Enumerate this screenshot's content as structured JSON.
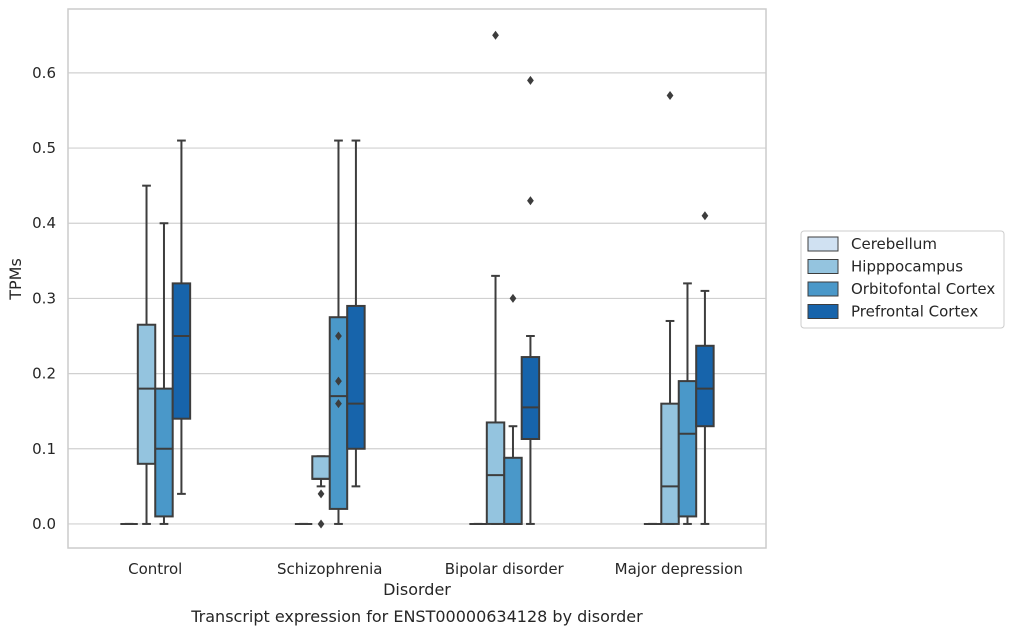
{
  "chart_data": {
    "type": "boxplot",
    "caption": "Transcript expression for ENST00000634128 by disorder",
    "xlabel": "Disorder",
    "ylabel": "TPMs",
    "ylim": [
      -0.032,
      0.685
    ],
    "yticks": [
      0.0,
      0.1,
      0.2,
      0.3,
      0.4,
      0.5,
      0.6
    ],
    "ytick_labels": [
      "0.0",
      "0.1",
      "0.2",
      "0.3",
      "0.4",
      "0.5",
      "0.6"
    ],
    "grid": "horizontal",
    "legend_position": "right",
    "categories": [
      "Control",
      "Schizophrenia",
      "Bipolar disorder",
      "Major depression"
    ],
    "series": [
      {
        "name": "Cerebellum",
        "color": "#d0e1f2",
        "boxes": [
          {
            "min": 0,
            "q1": 0,
            "median": 0,
            "q3": 0,
            "max": 0,
            "outliers": []
          },
          {
            "min": 0,
            "q1": 0,
            "median": 0,
            "q3": 0,
            "max": 0,
            "outliers": []
          },
          {
            "min": 0,
            "q1": 0,
            "median": 0,
            "q3": 0,
            "max": 0,
            "outliers": []
          },
          {
            "min": 0,
            "q1": 0,
            "median": 0,
            "q3": 0,
            "max": 0,
            "outliers": []
          }
        ]
      },
      {
        "name": "Hipppocampus",
        "color": "#94c4df",
        "boxes": [
          {
            "min": 0,
            "q1": 0.08,
            "median": 0.18,
            "q3": 0.265,
            "max": 0.45,
            "outliers": []
          },
          {
            "min": 0.05,
            "q1": 0.06,
            "median": 0.06,
            "q3": 0.09,
            "max": 0.09,
            "outliers": [
              0.04,
              0.0
            ]
          },
          {
            "min": 0,
            "q1": 0,
            "median": 0.065,
            "q3": 0.135,
            "max": 0.33,
            "outliers": [
              0.65
            ]
          },
          {
            "min": 0,
            "q1": 0,
            "median": 0.05,
            "q3": 0.16,
            "max": 0.27,
            "outliers": [
              0.57
            ]
          }
        ]
      },
      {
        "name": "Orbitofontal Cortex",
        "color": "#4a98c9",
        "boxes": [
          {
            "min": 0,
            "q1": 0.01,
            "median": 0.1,
            "q3": 0.18,
            "max": 0.4,
            "outliers": []
          },
          {
            "min": 0,
            "q1": 0.02,
            "median": 0.17,
            "q3": 0.275,
            "max": 0.51,
            "outliers": [
              0.25,
              0.19,
              0.16
            ]
          },
          {
            "min": 0,
            "q1": 0,
            "median": 0,
            "q3": 0.088,
            "max": 0.13,
            "outliers": [
              0.3
            ]
          },
          {
            "min": 0,
            "q1": 0.01,
            "median": 0.12,
            "q3": 0.19,
            "max": 0.32,
            "outliers": []
          }
        ]
      },
      {
        "name": "Prefrontal Cortex",
        "color": "#1764ab",
        "boxes": [
          {
            "min": 0.04,
            "q1": 0.14,
            "median": 0.25,
            "q3": 0.32,
            "max": 0.51,
            "outliers": []
          },
          {
            "min": 0.05,
            "q1": 0.1,
            "median": 0.16,
            "q3": 0.29,
            "max": 0.51,
            "outliers": []
          },
          {
            "min": 0,
            "q1": 0.113,
            "median": 0.155,
            "q3": 0.222,
            "max": 0.25,
            "outliers": [
              0.59,
              0.43
            ]
          },
          {
            "min": 0,
            "q1": 0.13,
            "median": 0.18,
            "q3": 0.237,
            "max": 0.31,
            "outliers": [
              0.41
            ]
          }
        ]
      }
    ]
  }
}
